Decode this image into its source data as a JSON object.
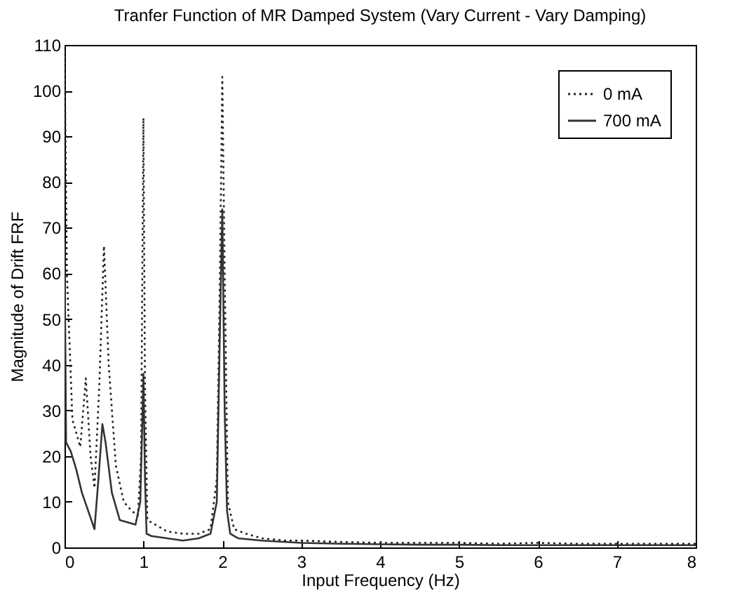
{
  "chart_data": {
    "type": "line",
    "title": "Tranfer Function of MR Damped System (Vary Current - Vary Damping)",
    "xlabel": "Input Frequency (Hz)",
    "ylabel": "Magnitude of Drift FRF",
    "xlim": [
      0,
      8
    ],
    "xticks": [
      0,
      1,
      2,
      3,
      4,
      5,
      6,
      7,
      8
    ],
    "ylim": [
      0,
      110
    ],
    "yticks": [
      0,
      10,
      20,
      30,
      40,
      50,
      60,
      70,
      80,
      90,
      100,
      110
    ],
    "grid": false,
    "legend": "top right",
    "marker": "none",
    "series": [
      {
        "name": "0 mA",
        "color": "#222222",
        "line_style": "dotted",
        "x": [
          0,
          0.03,
          0.1,
          0.2,
          0.27,
          0.33,
          0.38,
          0.44,
          0.5,
          0.56,
          0.65,
          0.75,
          0.85,
          0.93,
          0.97,
          1.0,
          1.02,
          1.05,
          1.15,
          1.3,
          1.5,
          1.7,
          1.85,
          1.93,
          1.97,
          2.0,
          2.03,
          2.07,
          2.15,
          2.3,
          2.5,
          2.8,
          3.0,
          3.5,
          4.0,
          4.5,
          5.0,
          5.5,
          6.0,
          6.5,
          7.0,
          7.5,
          8.0
        ],
        "values": [
          110,
          60,
          28,
          22,
          37,
          20,
          13,
          35,
          66,
          40,
          18,
          10,
          8,
          7,
          20,
          94,
          35,
          6,
          5,
          3.5,
          3,
          3,
          4,
          15,
          60,
          103,
          60,
          10,
          4,
          3,
          2,
          1.5,
          1.5,
          1.2,
          1,
          1,
          1,
          0.8,
          1,
          0.8,
          0.8,
          0.8,
          0.8
        ]
      },
      {
        "name": "700 mA",
        "color": "#333333",
        "line_style": "solid",
        "x": [
          0,
          0.02,
          0.08,
          0.15,
          0.22,
          0.3,
          0.38,
          0.43,
          0.48,
          0.52,
          0.6,
          0.7,
          0.8,
          0.9,
          0.96,
          0.99,
          1.0,
          1.02,
          1.04,
          1.1,
          1.3,
          1.5,
          1.7,
          1.85,
          1.93,
          1.97,
          2.0,
          2.03,
          2.06,
          2.1,
          2.2,
          2.5,
          3.0,
          3.5,
          4.0,
          4.5,
          5.0,
          5.5,
          6.0,
          6.5,
          7.0,
          7.5,
          8.0
        ],
        "values": [
          67,
          23,
          21,
          17,
          12,
          8,
          4,
          15,
          27,
          23,
          12,
          6,
          5.5,
          5,
          10,
          30,
          38,
          15,
          3,
          2.5,
          2,
          1.5,
          2,
          3,
          10,
          48,
          74,
          30,
          8,
          3,
          2,
          1.5,
          1,
          0.8,
          0.7,
          0.6,
          0.6,
          0.5,
          0.5,
          0.5,
          0.5,
          0.5,
          0.5
        ]
      }
    ]
  }
}
